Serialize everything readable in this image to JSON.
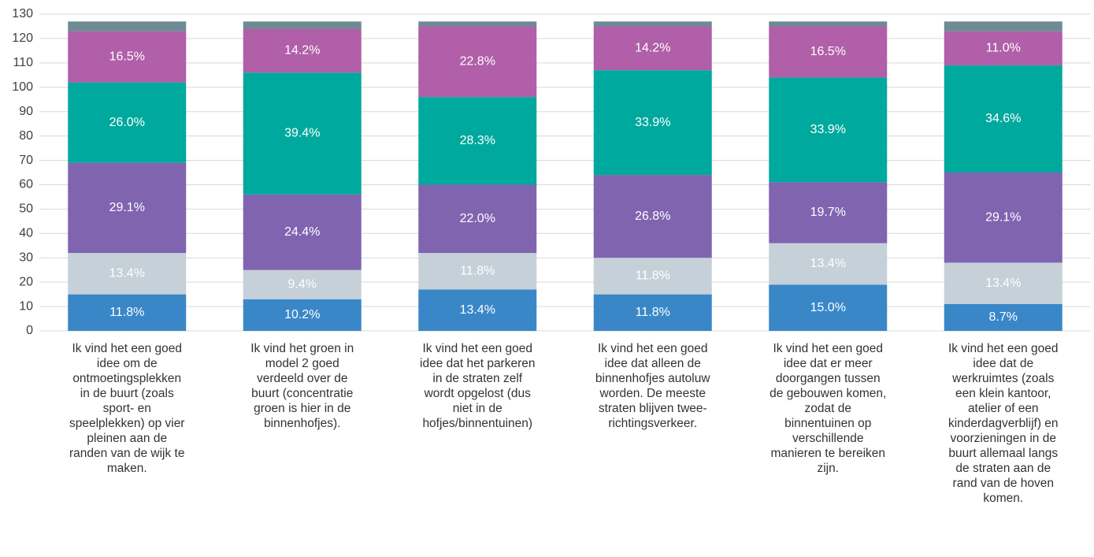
{
  "chart_data": {
    "type": "stacked_bar",
    "categories": [
      "Ik vind het een goed idee om de ontmoetingsplekken in de buurt (zoals sport- en speelplekken) op vier pleinen aan de randen van de wijk te maken.",
      "Ik vind het groen in model 2 goed verdeeld over de buurt (concentratie groen is hier in de binnenhofjes).",
      "Ik vind het een goed idee dat het parkeren in de straten zelf wordt opgelost (dus niet in de hofjes/binnentuinen)",
      "Ik vind het een goed idee dat alleen de binnenhofjes autoluw worden. De meeste straten blijven twee-richtingsverkeer.",
      "Ik vind het een goed idee dat er meer doorgangen tussen de gebouwen komen, zodat de binnentuinen op verschillende manieren te bereiken zijn.",
      "Ik vind het een goed idee dat de werkruimtes (zoals een klein kantoor, atelier of een kinderdagverblijf) en voorzieningen in de buurt allemaal langs de straten aan de rand van de hoven komen."
    ],
    "series": [
      {
        "color": "#3a87c8",
        "values": [
          15,
          13,
          17,
          15,
          19,
          11
        ],
        "value_labels": [
          "11.8%",
          "10.2%",
          "13.4%",
          "11.8%",
          "15.0%",
          "8.7%"
        ]
      },
      {
        "color": "#c5d0d8",
        "values": [
          17,
          12,
          15,
          15,
          17,
          17
        ],
        "value_labels": [
          "13.4%",
          "9.4%",
          "11.8%",
          "11.8%",
          "13.4%",
          "13.4%"
        ]
      },
      {
        "color": "#8064b0",
        "values": [
          37,
          31,
          28,
          34,
          25,
          37
        ],
        "value_labels": [
          "29.1%",
          "24.4%",
          "22.0%",
          "26.8%",
          "19.7%",
          "29.1%"
        ]
      },
      {
        "color": "#00a99d",
        "values": [
          33,
          50,
          36,
          43,
          43,
          44
        ],
        "value_labels": [
          "26.0%",
          "39.4%",
          "28.3%",
          "33.9%",
          "33.9%",
          "34.6%"
        ]
      },
      {
        "color": "#b05fa8",
        "values": [
          21,
          18,
          29,
          18,
          21,
          14
        ],
        "value_labels": [
          "16.5%",
          "14.2%",
          "22.8%",
          "14.2%",
          "16.5%",
          "11.0%"
        ]
      },
      {
        "color": "#6e8a93",
        "values": [
          4,
          3,
          2,
          2,
          2,
          4
        ]
      }
    ],
    "ylim": [
      0,
      130
    ],
    "yticks": [
      0,
      10,
      20,
      30,
      40,
      50,
      60,
      70,
      80,
      90,
      100,
      110,
      120,
      130
    ],
    "grid": true
  }
}
